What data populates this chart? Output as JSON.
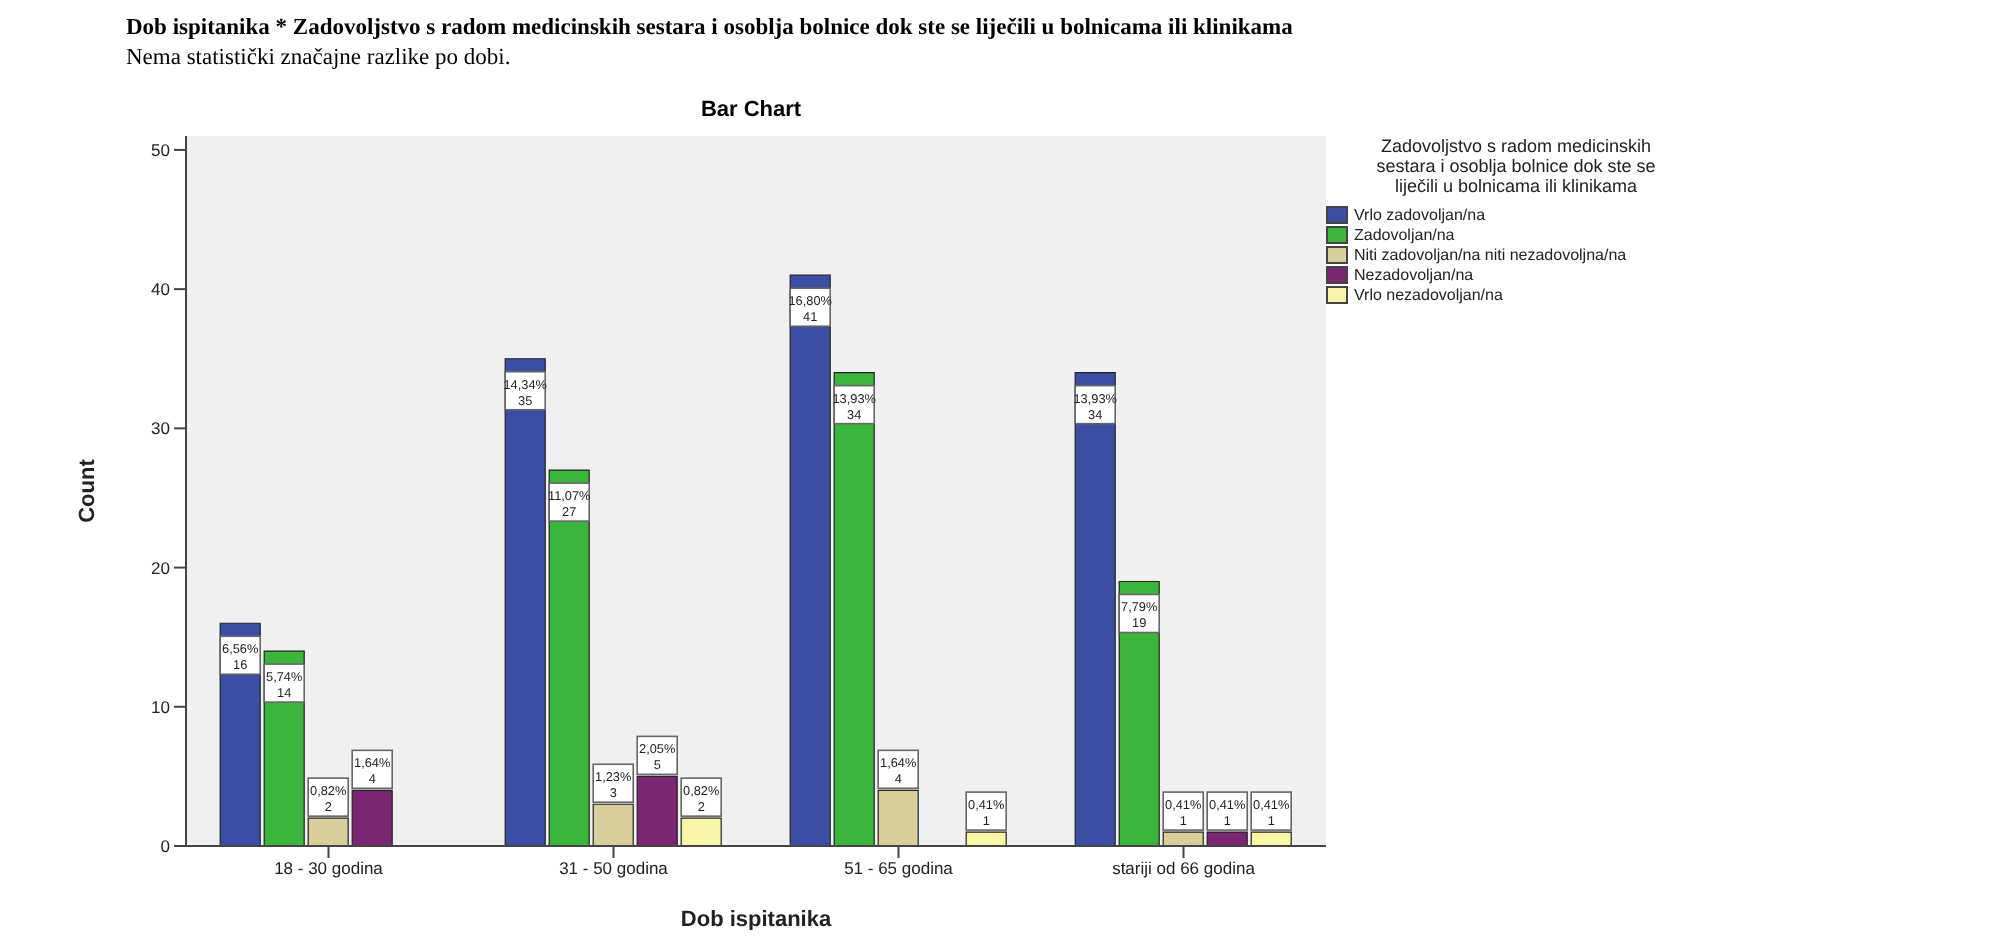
{
  "chart_data": {
    "type": "bar",
    "title": "Dob ispitanika * Zadovoljstvo  s radom medicinskih sestara  i osoblja bolnice dok ste se liječili  u bolnicama  ili klinikama",
    "subtitle": "Nema statistički značajne razlike po dobi.",
    "annotations": [
      "Bar Chart"
    ],
    "xlabel": "Dob ispitanika",
    "ylabel": "Count",
    "legend_title": "Zadovoljstvo s radom medicinskih sestara i osoblja bolnice dok ste se liječili u bolnicama ili klinikama",
    "categories": [
      "18 - 30 godina",
      "31 - 50 godina",
      "51 - 65 godina",
      "stariji od 66 godina"
    ],
    "series": [
      {
        "name": "Vrlo zadovoljan/na",
        "color": "#3b4ea3",
        "values": [
          16,
          35,
          41,
          34
        ],
        "value_labels": [
          "6,56%\n16",
          "14,34%\n35",
          "16,80%\n41",
          "13,93%\n34"
        ]
      },
      {
        "name": "Zadovoljan/na",
        "color": "#3cb53c",
        "values": [
          14,
          27,
          34,
          19
        ],
        "value_labels": [
          "5,74%\n14",
          "11,07%\n27",
          "13,93%\n34",
          "7,79%\n19"
        ]
      },
      {
        "name": "Niti zadovoljan/na niti nezadovoljna/na",
        "color": "#d8cf9c",
        "values": [
          2,
          3,
          4,
          1
        ],
        "value_labels": [
          "0,82%\n2",
          "1,23%\n3",
          "1,64%\n4",
          "0,41%\n1"
        ]
      },
      {
        "name": "Nezadovoljan/na",
        "color": "#7a2672",
        "values": [
          4,
          5,
          null,
          1
        ],
        "value_labels": [
          "1,64%\n4",
          "2,05%\n5",
          null,
          "0,41%\n1"
        ]
      },
      {
        "name": "Vrlo nezadovoljan/na",
        "color": "#f8f4a8",
        "values": [
          null,
          2,
          1,
          1
        ],
        "value_labels": [
          null,
          "0,82%\n2",
          "0,41%\n1",
          "0,41%\n1"
        ]
      }
    ],
    "ylim": [
      0,
      51
    ],
    "yticks": [
      0,
      10,
      20,
      30,
      40,
      50
    ],
    "legend": "right"
  }
}
